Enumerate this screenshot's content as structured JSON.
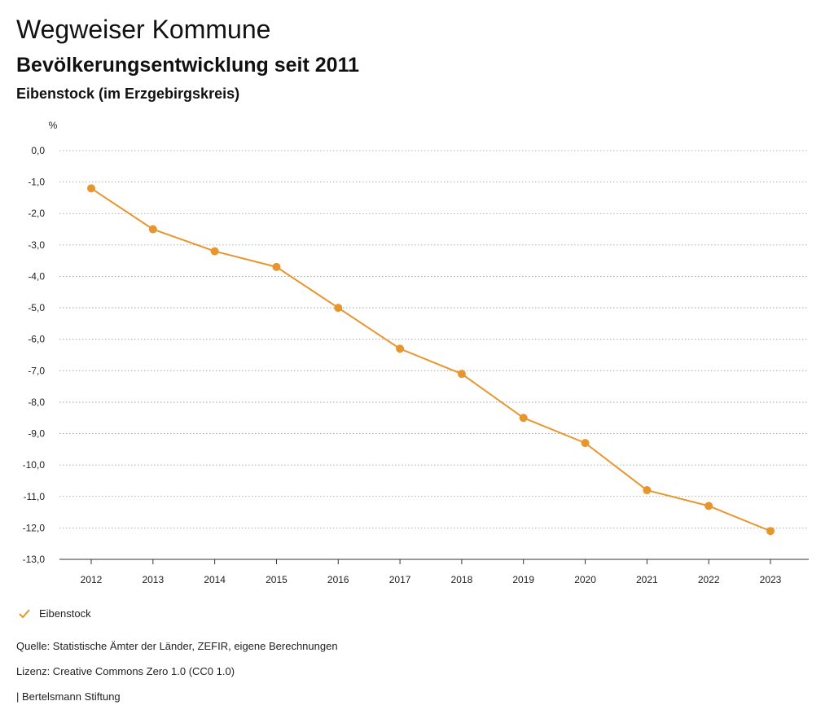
{
  "header": {
    "title": "Wegweiser Kommune",
    "subtitle": "Bevölkerungsentwicklung seit 2011",
    "region": "Eibenstock (im Erzgebirgskreis)"
  },
  "chart_data": {
    "type": "line",
    "ylabel": "%",
    "x": [
      "2012",
      "2013",
      "2014",
      "2015",
      "2016",
      "2017",
      "2018",
      "2019",
      "2020",
      "2021",
      "2022",
      "2023"
    ],
    "series": [
      {
        "name": "Eibenstock",
        "color": "#E8952E",
        "values": [
          -1.2,
          -2.5,
          -3.2,
          -3.7,
          -5.0,
          -6.3,
          -7.1,
          -8.5,
          -9.3,
          -10.8,
          -11.3,
          -12.1
        ]
      }
    ],
    "ylim": [
      -13,
      0
    ],
    "yticks": [
      "0,0",
      "-1,0",
      "-2,0",
      "-3,0",
      "-4,0",
      "-5,0",
      "-6,0",
      "-7,0",
      "-8,0",
      "-9,0",
      "-10,0",
      "-11,0",
      "-12,0",
      "-13,0"
    ],
    "grid": true,
    "legend_position": "bottom-left"
  },
  "legend": {
    "label": "Eibenstock",
    "icon": "check-icon"
  },
  "footer": {
    "source": "Quelle: Statistische Ämter der Länder, ZEFIR, eigene Berechnungen",
    "license": "Lizenz: Creative Commons Zero 1.0 (CC0 1.0)",
    "publisher": "| Bertelsmann Stiftung"
  }
}
